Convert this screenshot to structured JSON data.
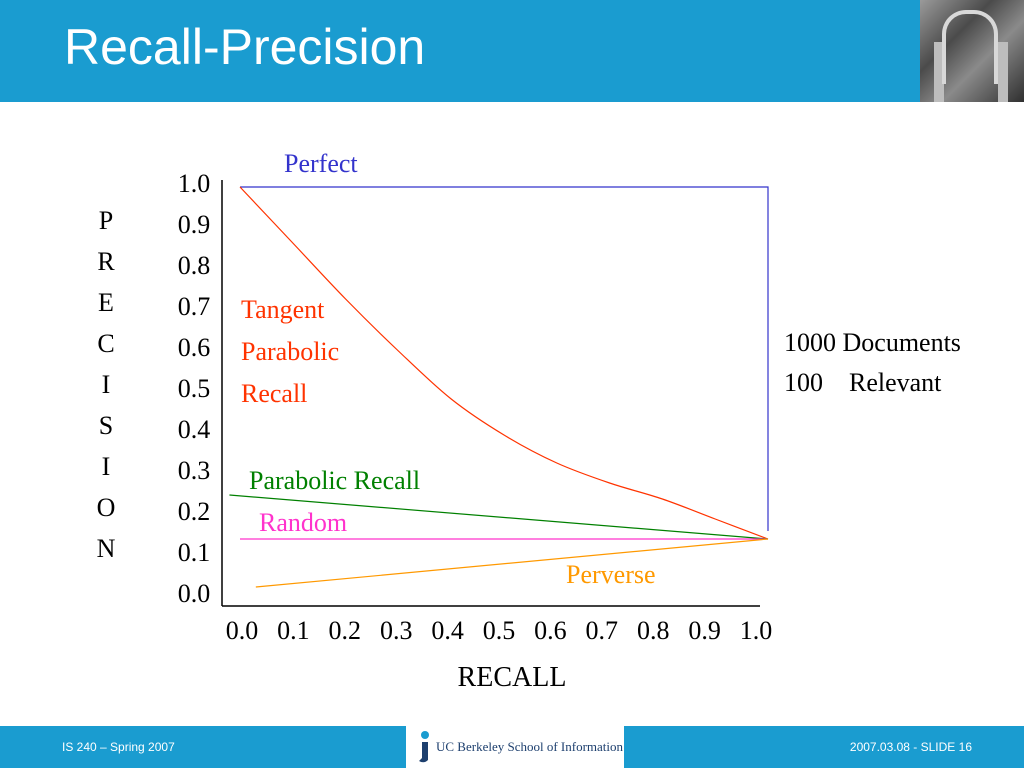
{
  "slide": {
    "title": "Recall-Precision",
    "footer_left": "IS 240 – Spring 2007",
    "footer_right": "2007.03.08 - SLIDE 16",
    "logo_text": "UC Berkeley School of Information"
  },
  "notes": [
    "1000 Documents",
    "100    Relevant"
  ],
  "colors": {
    "header": "#1a9cd0",
    "perfect": "#3333cc",
    "tangent": "#ff3300",
    "parabolic": "#008000",
    "random": "#ff33cc",
    "perverse": "#ff9900"
  },
  "chart_data": {
    "type": "line",
    "title": "",
    "xlabel": "RECALL",
    "ylabel": "PRECISION",
    "xlim": [
      0,
      1
    ],
    "ylim": [
      0,
      1
    ],
    "x_ticks": [
      "0.0",
      "0.1",
      "0.2",
      "0.3",
      "0.4",
      "0.5",
      "0.6",
      "0.7",
      "0.8",
      "0.9",
      "1.0"
    ],
    "y_ticks": [
      "0.0",
      "0.1",
      "0.2",
      "0.3",
      "0.4",
      "0.5",
      "0.6",
      "0.7",
      "0.8",
      "0.9",
      "1.0"
    ],
    "grid": false,
    "series": [
      {
        "name": "Perfect",
        "color": "#3333cc",
        "x": [
          0,
          1,
          1
        ],
        "y": [
          1,
          1,
          0.14
        ]
      },
      {
        "name": "Tangent Parabolic Recall",
        "color": "#ff3300",
        "x": [
          0,
          0.1,
          0.2,
          0.3,
          0.4,
          0.5,
          0.6,
          0.7,
          0.8,
          0.9,
          1.0
        ],
        "y": [
          1.0,
          0.86,
          0.72,
          0.59,
          0.47,
          0.38,
          0.31,
          0.26,
          0.22,
          0.17,
          0.12
        ]
      },
      {
        "name": "Parabolic Recall",
        "color": "#008000",
        "x": [
          -0.02,
          1
        ],
        "y": [
          0.23,
          0.12
        ]
      },
      {
        "name": "Random",
        "color": "#ff33cc",
        "x": [
          0,
          1
        ],
        "y": [
          0.12,
          0.12
        ]
      },
      {
        "name": "Perverse",
        "color": "#ff9900",
        "x": [
          0.03,
          1
        ],
        "y": [
          0,
          0.12
        ]
      }
    ]
  }
}
